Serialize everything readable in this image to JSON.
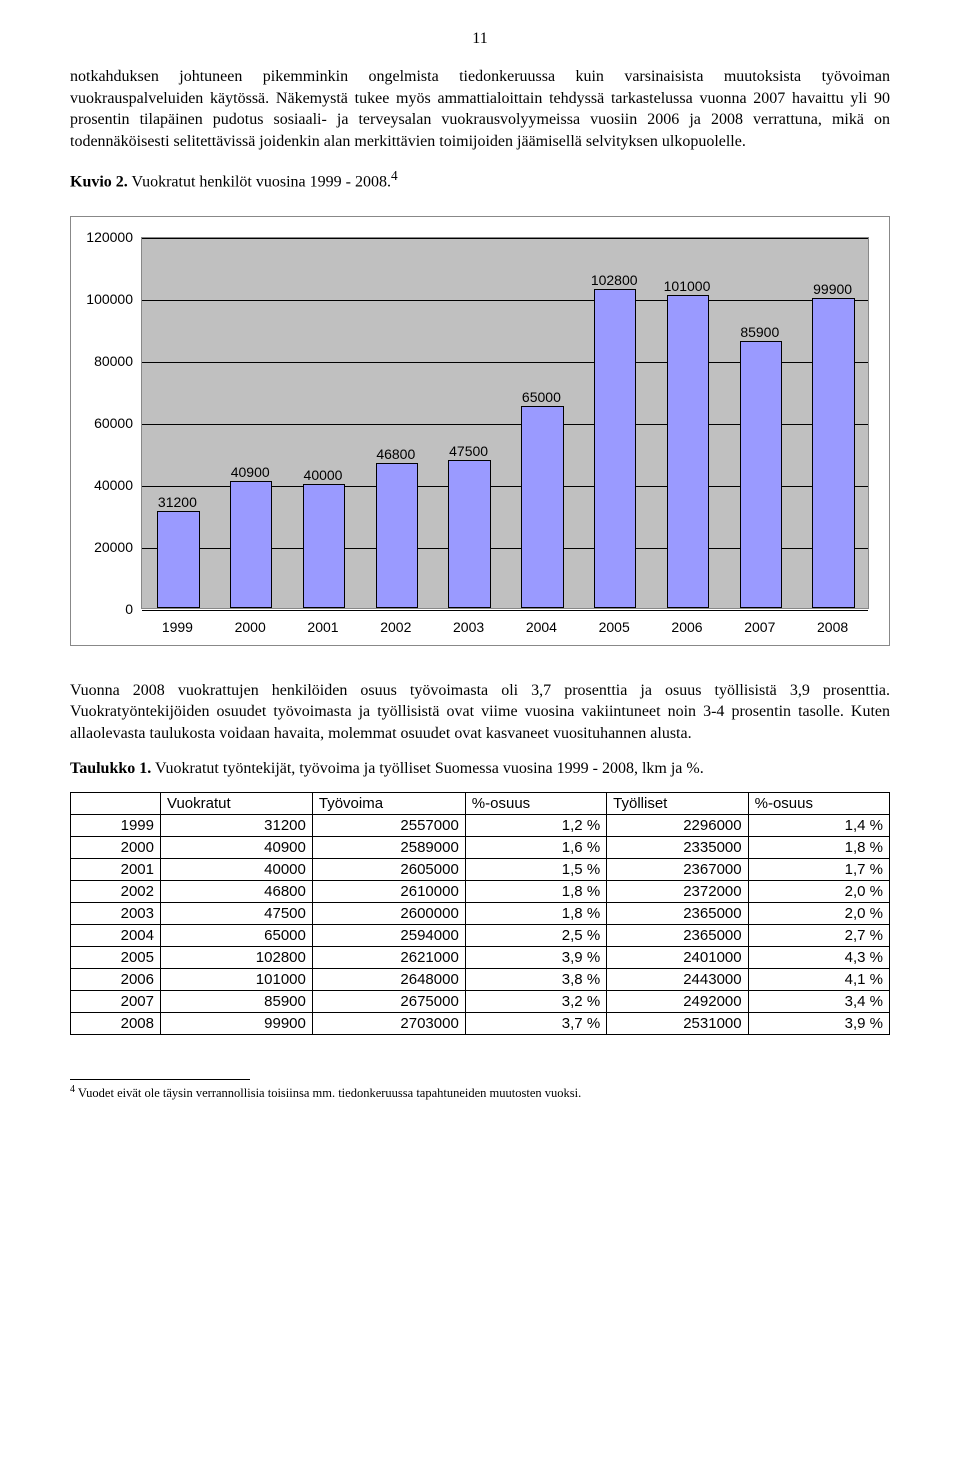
{
  "page_number": "11",
  "para1": "notkahduksen johtuneen pikemminkin ongelmista tiedonkeruussa kuin varsinaisista muutoksista työvoiman vuokrauspalveluiden käytössä. Näkemystä tukee myös ammattialoittain tehdyssä tarkastelussa vuonna 2007 havaittu yli 90 prosentin tilapäinen pudotus sosiaali- ja terveysalan vuokrausvolyymeissa vuosiin 2006 ja 2008 verrattuna, mikä on todennäköisesti selitettävissä joidenkin alan merkittävien toimijoiden jäämisellä selvityksen ulkopuolelle.",
  "kuvio_label": "Kuvio 2.",
  "kuvio_rest": " Vuokratut henkilöt vuosina 1999 - 2008.",
  "kuvio_sup": "4",
  "chart": {
    "type": "bar",
    "categories": [
      "1999",
      "2000",
      "2001",
      "2002",
      "2003",
      "2004",
      "2005",
      "2006",
      "2007",
      "2008"
    ],
    "values": [
      31200,
      40900,
      40000,
      46800,
      47500,
      65000,
      102800,
      101000,
      85900,
      99900
    ],
    "bar_color": "#9a9aff",
    "bar_border": "#000000",
    "plot_bg": "#c0c0c0",
    "chart_bg": "#ffffff",
    "ylim": [
      0,
      120000
    ],
    "ytick_step": 20000,
    "yticks": [
      "0",
      "20000",
      "40000",
      "60000",
      "80000",
      "100000",
      "120000"
    ],
    "label_fontsize": 14,
    "font_family": "Arial"
  },
  "para2": "Vuonna 2008 vuokrattujen henkilöiden osuus työvoimasta oli 3,7 prosenttia ja osuus työllisistä 3,9 prosenttia. Vuokratyöntekijöiden osuudet työvoimasta ja työllisistä ovat viime vuosina vakiintuneet noin 3-4 prosentin tasolle. Kuten allaolevasta taulukosta voidaan havaita, molemmat osuudet ovat kasvaneet vuosituhannen alusta.",
  "taulukko_label": "Taulukko 1.",
  "taulukko_rest": " Vuokratut työntekijät, työvoima ja työlliset Suomessa vuosina 1999 - 2008, lkm ja %.",
  "table": {
    "columns": [
      "",
      "Vuokratut",
      "Työvoima",
      "%-osuus",
      "Työlliset",
      "%-osuus"
    ],
    "rows": [
      [
        "1999",
        "31200",
        "2557000",
        "1,2 %",
        "2296000",
        "1,4 %"
      ],
      [
        "2000",
        "40900",
        "2589000",
        "1,6 %",
        "2335000",
        "1,8 %"
      ],
      [
        "2001",
        "40000",
        "2605000",
        "1,5 %",
        "2367000",
        "1,7 %"
      ],
      [
        "2002",
        "46800",
        "2610000",
        "1,8 %",
        "2372000",
        "2,0 %"
      ],
      [
        "2003",
        "47500",
        "2600000",
        "1,8 %",
        "2365000",
        "2,0 %"
      ],
      [
        "2004",
        "65000",
        "2594000",
        "2,5 %",
        "2365000",
        "2,7 %"
      ],
      [
        "2005",
        "102800",
        "2621000",
        "3,9 %",
        "2401000",
        "4,3 %"
      ],
      [
        "2006",
        "101000",
        "2648000",
        "3,8 %",
        "2443000",
        "4,1 %"
      ],
      [
        "2007",
        "85900",
        "2675000",
        "3,2 %",
        "2492000",
        "3,4 %"
      ],
      [
        "2008",
        "99900",
        "2703000",
        "3,7 %",
        "2531000",
        "3,9 %"
      ]
    ]
  },
  "footnote_sup": "4",
  "footnote_text": " Vuodet eivät ole täysin verrannollisia toisiinsa mm. tiedonkeruussa tapahtuneiden muutosten vuoksi."
}
